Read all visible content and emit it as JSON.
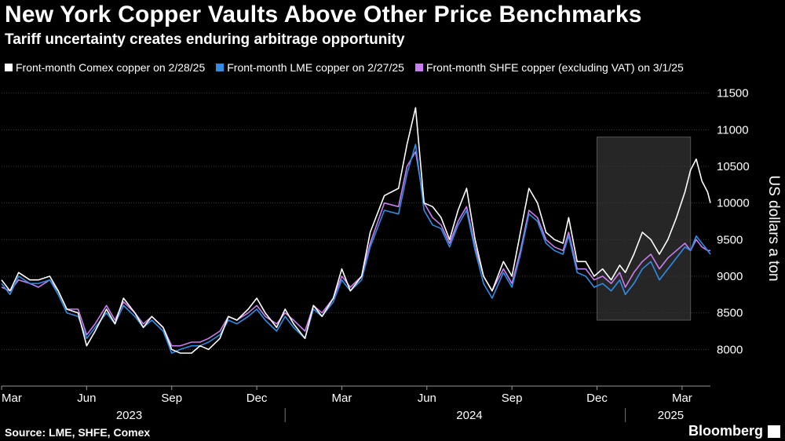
{
  "chart_data": {
    "type": "line",
    "title": "New York Copper Vaults Above Other Price Benchmarks",
    "subtitle": "Tariff uncertainty creates enduring arbitrage opportunity",
    "ylabel": "US dollars a ton",
    "ylim": [
      7500,
      11700
    ],
    "yticks": [
      8000,
      8500,
      9000,
      9500,
      10000,
      10500,
      11000,
      11500
    ],
    "month_ticks": [
      {
        "label": "Mar",
        "t": 0
      },
      {
        "label": "Jun",
        "t": 3
      },
      {
        "label": "Sep",
        "t": 6
      },
      {
        "label": "Dec",
        "t": 9
      },
      {
        "label": "Mar",
        "t": 12
      },
      {
        "label": "Jun",
        "t": 15
      },
      {
        "label": "Sep",
        "t": 18
      },
      {
        "label": "Dec",
        "t": 21
      },
      {
        "label": "Mar",
        "t": 24
      }
    ],
    "year_labels": [
      {
        "label": "2023",
        "t": 4.5
      },
      {
        "label": "2024",
        "t": 16.5
      },
      {
        "label": "2025",
        "t": 23.6
      }
    ],
    "year_separators": [
      10,
      22
    ],
    "highlight_range": [
      21,
      24.3
    ],
    "highlight_ylim": [
      8400,
      10900
    ],
    "legend_position": "top-left",
    "grid": true,
    "x_date_start": "2023-03-01",
    "series": [
      {
        "name": "Front-month Comex copper on 2/28/25",
        "color": "#ffffff",
        "points": [
          [
            0,
            8950
          ],
          [
            0.3,
            8800
          ],
          [
            0.6,
            9050
          ],
          [
            1,
            8950
          ],
          [
            1.3,
            8950
          ],
          [
            1.7,
            9000
          ],
          [
            2,
            8800
          ],
          [
            2.3,
            8550
          ],
          [
            2.7,
            8500
          ],
          [
            3,
            8050
          ],
          [
            3.3,
            8250
          ],
          [
            3.7,
            8550
          ],
          [
            4,
            8350
          ],
          [
            4.3,
            8700
          ],
          [
            4.7,
            8500
          ],
          [
            5,
            8300
          ],
          [
            5.3,
            8450
          ],
          [
            5.7,
            8300
          ],
          [
            6,
            8000
          ],
          [
            6.3,
            7950
          ],
          [
            6.7,
            7950
          ],
          [
            7,
            8050
          ],
          [
            7.3,
            8000
          ],
          [
            7.7,
            8150
          ],
          [
            8,
            8450
          ],
          [
            8.3,
            8400
          ],
          [
            8.7,
            8550
          ],
          [
            9,
            8700
          ],
          [
            9.3,
            8500
          ],
          [
            9.7,
            8300
          ],
          [
            10,
            8550
          ],
          [
            10.3,
            8350
          ],
          [
            10.7,
            8150
          ],
          [
            11,
            8600
          ],
          [
            11.3,
            8450
          ],
          [
            11.7,
            8700
          ],
          [
            12,
            9100
          ],
          [
            12.3,
            8800
          ],
          [
            12.7,
            9000
          ],
          [
            13,
            9600
          ],
          [
            13.5,
            10100
          ],
          [
            14,
            10200
          ],
          [
            14.3,
            10800
          ],
          [
            14.6,
            11300
          ],
          [
            14.9,
            10000
          ],
          [
            15.2,
            9950
          ],
          [
            15.5,
            9800
          ],
          [
            15.8,
            9500
          ],
          [
            16.1,
            9900
          ],
          [
            16.4,
            10200
          ],
          [
            16.7,
            9500
          ],
          [
            17,
            9000
          ],
          [
            17.3,
            8800
          ],
          [
            17.7,
            9200
          ],
          [
            18,
            9000
          ],
          [
            18.3,
            9600
          ],
          [
            18.6,
            10200
          ],
          [
            18.9,
            10000
          ],
          [
            19.2,
            9600
          ],
          [
            19.5,
            9500
          ],
          [
            19.8,
            9450
          ],
          [
            20,
            9800
          ],
          [
            20.3,
            9200
          ],
          [
            20.6,
            9200
          ],
          [
            20.9,
            9000
          ],
          [
            21.2,
            9100
          ],
          [
            21.5,
            8950
          ],
          [
            21.8,
            9150
          ],
          [
            22,
            9050
          ],
          [
            22.3,
            9300
          ],
          [
            22.6,
            9600
          ],
          [
            22.9,
            9500
          ],
          [
            23.2,
            9300
          ],
          [
            23.5,
            9500
          ],
          [
            23.8,
            9800
          ],
          [
            24.1,
            10150
          ],
          [
            24.3,
            10450
          ],
          [
            24.5,
            10600
          ],
          [
            24.7,
            10300
          ],
          [
            24.9,
            10150
          ],
          [
            25,
            10000
          ]
        ]
      },
      {
        "name": "Front-month LME copper on 2/27/25",
        "color": "#2f8de4",
        "points": [
          [
            0,
            8900
          ],
          [
            0.3,
            8750
          ],
          [
            0.6,
            9000
          ],
          [
            1,
            8900
          ],
          [
            1.3,
            8900
          ],
          [
            1.7,
            8950
          ],
          [
            2,
            8750
          ],
          [
            2.3,
            8500
          ],
          [
            2.7,
            8450
          ],
          [
            3,
            8150
          ],
          [
            3.3,
            8300
          ],
          [
            3.7,
            8500
          ],
          [
            4,
            8350
          ],
          [
            4.3,
            8600
          ],
          [
            4.7,
            8450
          ],
          [
            5,
            8300
          ],
          [
            5.3,
            8400
          ],
          [
            5.7,
            8250
          ],
          [
            6,
            7950
          ],
          [
            6.3,
            8000
          ],
          [
            6.7,
            8050
          ],
          [
            7,
            8050
          ],
          [
            7.3,
            8100
          ],
          [
            7.7,
            8200
          ],
          [
            8,
            8400
          ],
          [
            8.3,
            8350
          ],
          [
            8.7,
            8450
          ],
          [
            9,
            8550
          ],
          [
            9.3,
            8400
          ],
          [
            9.7,
            8250
          ],
          [
            10,
            8450
          ],
          [
            10.3,
            8300
          ],
          [
            10.7,
            8150
          ],
          [
            11,
            8550
          ],
          [
            11.3,
            8450
          ],
          [
            11.7,
            8650
          ],
          [
            12,
            8950
          ],
          [
            12.3,
            8800
          ],
          [
            12.7,
            8950
          ],
          [
            13,
            9400
          ],
          [
            13.5,
            9900
          ],
          [
            14,
            9850
          ],
          [
            14.3,
            10400
          ],
          [
            14.6,
            10800
          ],
          [
            14.9,
            9900
          ],
          [
            15.2,
            9700
          ],
          [
            15.5,
            9650
          ],
          [
            15.8,
            9400
          ],
          [
            16.1,
            9700
          ],
          [
            16.4,
            9900
          ],
          [
            16.7,
            9350
          ],
          [
            17,
            8900
          ],
          [
            17.3,
            8700
          ],
          [
            17.7,
            9050
          ],
          [
            18,
            8850
          ],
          [
            18.3,
            9300
          ],
          [
            18.6,
            9850
          ],
          [
            18.9,
            9750
          ],
          [
            19.2,
            9450
          ],
          [
            19.5,
            9350
          ],
          [
            19.8,
            9300
          ],
          [
            20,
            9550
          ],
          [
            20.3,
            9050
          ],
          [
            20.6,
            9000
          ],
          [
            20.9,
            8850
          ],
          [
            21.2,
            8900
          ],
          [
            21.5,
            8800
          ],
          [
            21.8,
            8950
          ],
          [
            22,
            8750
          ],
          [
            22.3,
            8900
          ],
          [
            22.6,
            9100
          ],
          [
            22.9,
            9200
          ],
          [
            23.2,
            8950
          ],
          [
            23.5,
            9100
          ],
          [
            23.8,
            9250
          ],
          [
            24.1,
            9400
          ],
          [
            24.3,
            9350
          ],
          [
            24.5,
            9550
          ],
          [
            24.7,
            9450
          ],
          [
            24.9,
            9350
          ],
          [
            25,
            9300
          ]
        ]
      },
      {
        "name": "Front-month SHFE copper (excluding VAT) on 3/1/25",
        "color": "#c97ef0",
        "points": [
          [
            0,
            8850
          ],
          [
            0.3,
            8800
          ],
          [
            0.6,
            8950
          ],
          [
            1,
            8900
          ],
          [
            1.3,
            8850
          ],
          [
            1.7,
            8950
          ],
          [
            2,
            8800
          ],
          [
            2.3,
            8550
          ],
          [
            2.7,
            8550
          ],
          [
            3,
            8200
          ],
          [
            3.3,
            8350
          ],
          [
            3.7,
            8600
          ],
          [
            4,
            8400
          ],
          [
            4.3,
            8650
          ],
          [
            4.7,
            8500
          ],
          [
            5,
            8350
          ],
          [
            5.3,
            8450
          ],
          [
            5.7,
            8300
          ],
          [
            6,
            8050
          ],
          [
            6.3,
            8050
          ],
          [
            6.7,
            8100
          ],
          [
            7,
            8100
          ],
          [
            7.3,
            8150
          ],
          [
            7.7,
            8250
          ],
          [
            8,
            8450
          ],
          [
            8.3,
            8400
          ],
          [
            8.7,
            8500
          ],
          [
            9,
            8600
          ],
          [
            9.3,
            8450
          ],
          [
            9.7,
            8350
          ],
          [
            10,
            8500
          ],
          [
            10.3,
            8400
          ],
          [
            10.7,
            8250
          ],
          [
            11,
            8600
          ],
          [
            11.3,
            8500
          ],
          [
            11.7,
            8700
          ],
          [
            12,
            9000
          ],
          [
            12.3,
            8850
          ],
          [
            12.7,
            9000
          ],
          [
            13,
            9450
          ],
          [
            13.5,
            10000
          ],
          [
            14,
            9950
          ],
          [
            14.3,
            10500
          ],
          [
            14.6,
            10700
          ],
          [
            14.9,
            10000
          ],
          [
            15.2,
            9800
          ],
          [
            15.5,
            9700
          ],
          [
            15.8,
            9450
          ],
          [
            16.1,
            9750
          ],
          [
            16.4,
            9950
          ],
          [
            16.7,
            9400
          ],
          [
            17,
            9000
          ],
          [
            17.3,
            8800
          ],
          [
            17.7,
            9100
          ],
          [
            18,
            8900
          ],
          [
            18.3,
            9350
          ],
          [
            18.6,
            9900
          ],
          [
            18.9,
            9800
          ],
          [
            19.2,
            9500
          ],
          [
            19.5,
            9400
          ],
          [
            19.8,
            9350
          ],
          [
            20,
            9600
          ],
          [
            20.3,
            9100
          ],
          [
            20.6,
            9100
          ],
          [
            20.9,
            8950
          ],
          [
            21.2,
            9000
          ],
          [
            21.5,
            8900
          ],
          [
            21.8,
            9050
          ],
          [
            22,
            8850
          ],
          [
            22.3,
            9050
          ],
          [
            22.6,
            9200
          ],
          [
            22.9,
            9300
          ],
          [
            23.2,
            9100
          ],
          [
            23.5,
            9250
          ],
          [
            23.8,
            9350
          ],
          [
            24.1,
            9450
          ],
          [
            24.3,
            9350
          ],
          [
            24.5,
            9500
          ],
          [
            24.7,
            9400
          ],
          [
            24.9,
            9350
          ],
          [
            25,
            9350
          ]
        ]
      }
    ]
  },
  "footer": {
    "source": "Source: LME, SHFE, Comex",
    "brand": "Bloomberg"
  }
}
